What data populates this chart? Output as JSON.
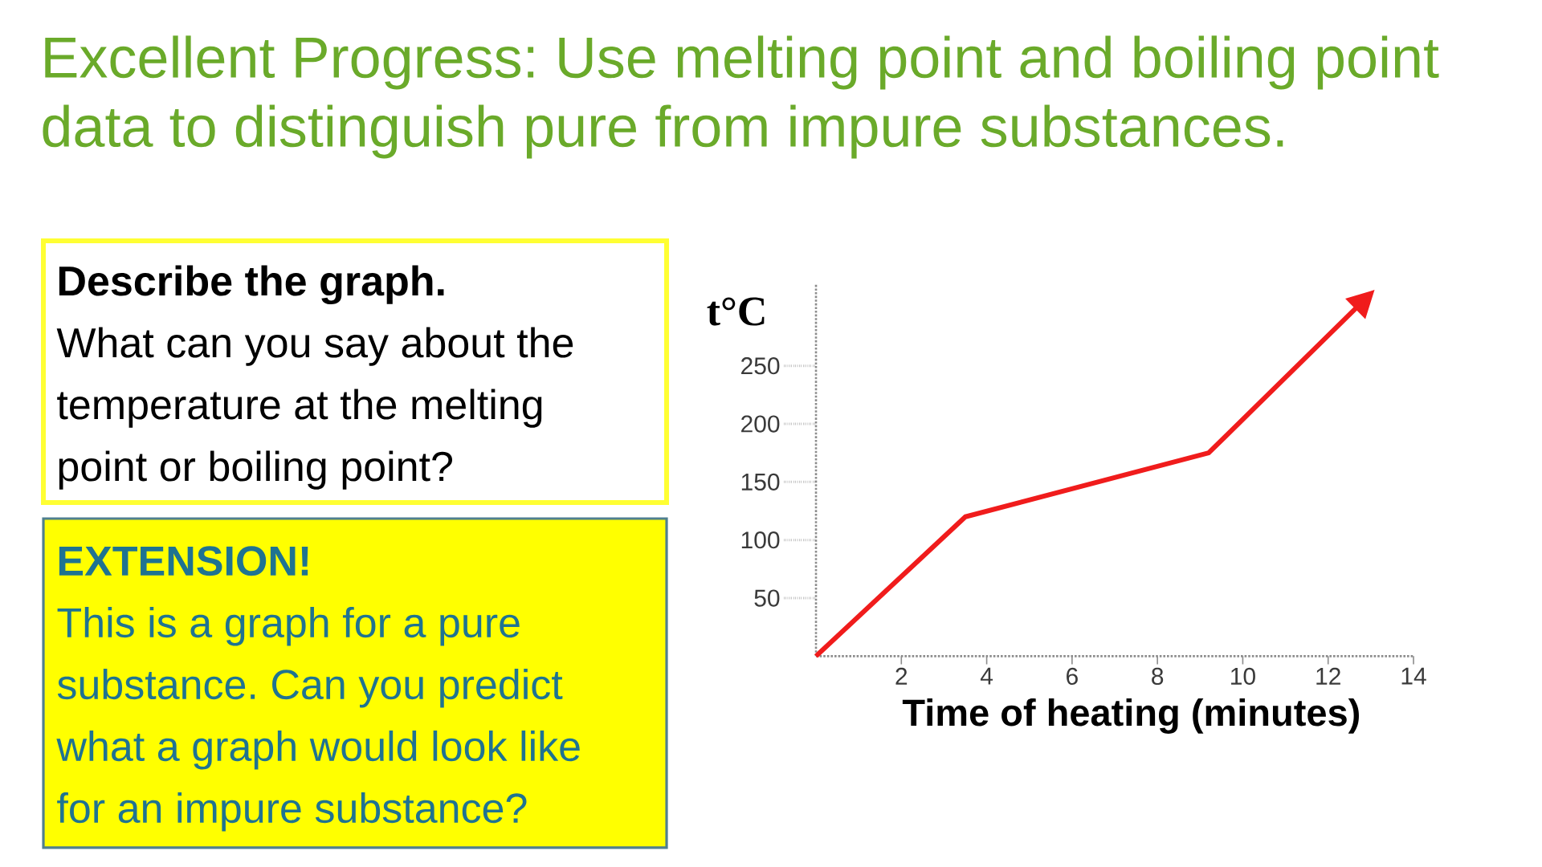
{
  "chart_data": {
    "type": "line",
    "title": "Excellent Progress: Use melting point and boiling point data to distinguish pure from impure substances.",
    "xlabel": "Time of heating (minutes)",
    "ylabel": "t°C",
    "x": [
      0,
      3.5,
      9.2,
      12.8
    ],
    "series": [
      {
        "color": "#f01c1c",
        "values": [
          0,
          120,
          175,
          305
        ]
      }
    ],
    "xlim": [
      0,
      14
    ],
    "ylim": [
      0,
      320
    ],
    "xticks": [
      2,
      4,
      6,
      8,
      10,
      12,
      14
    ],
    "yticks": [
      50,
      100,
      150,
      200,
      250
    ],
    "marker": "none",
    "line_style": "solid",
    "grid": false,
    "annotations": [
      "Describe the graph.",
      "What can you say about the temperature at the melting point or boiling point?",
      "EXTENSION!",
      "This is a graph for a pure substance. Can you predict what a graph would look like for an impure substance?"
    ]
  }
}
